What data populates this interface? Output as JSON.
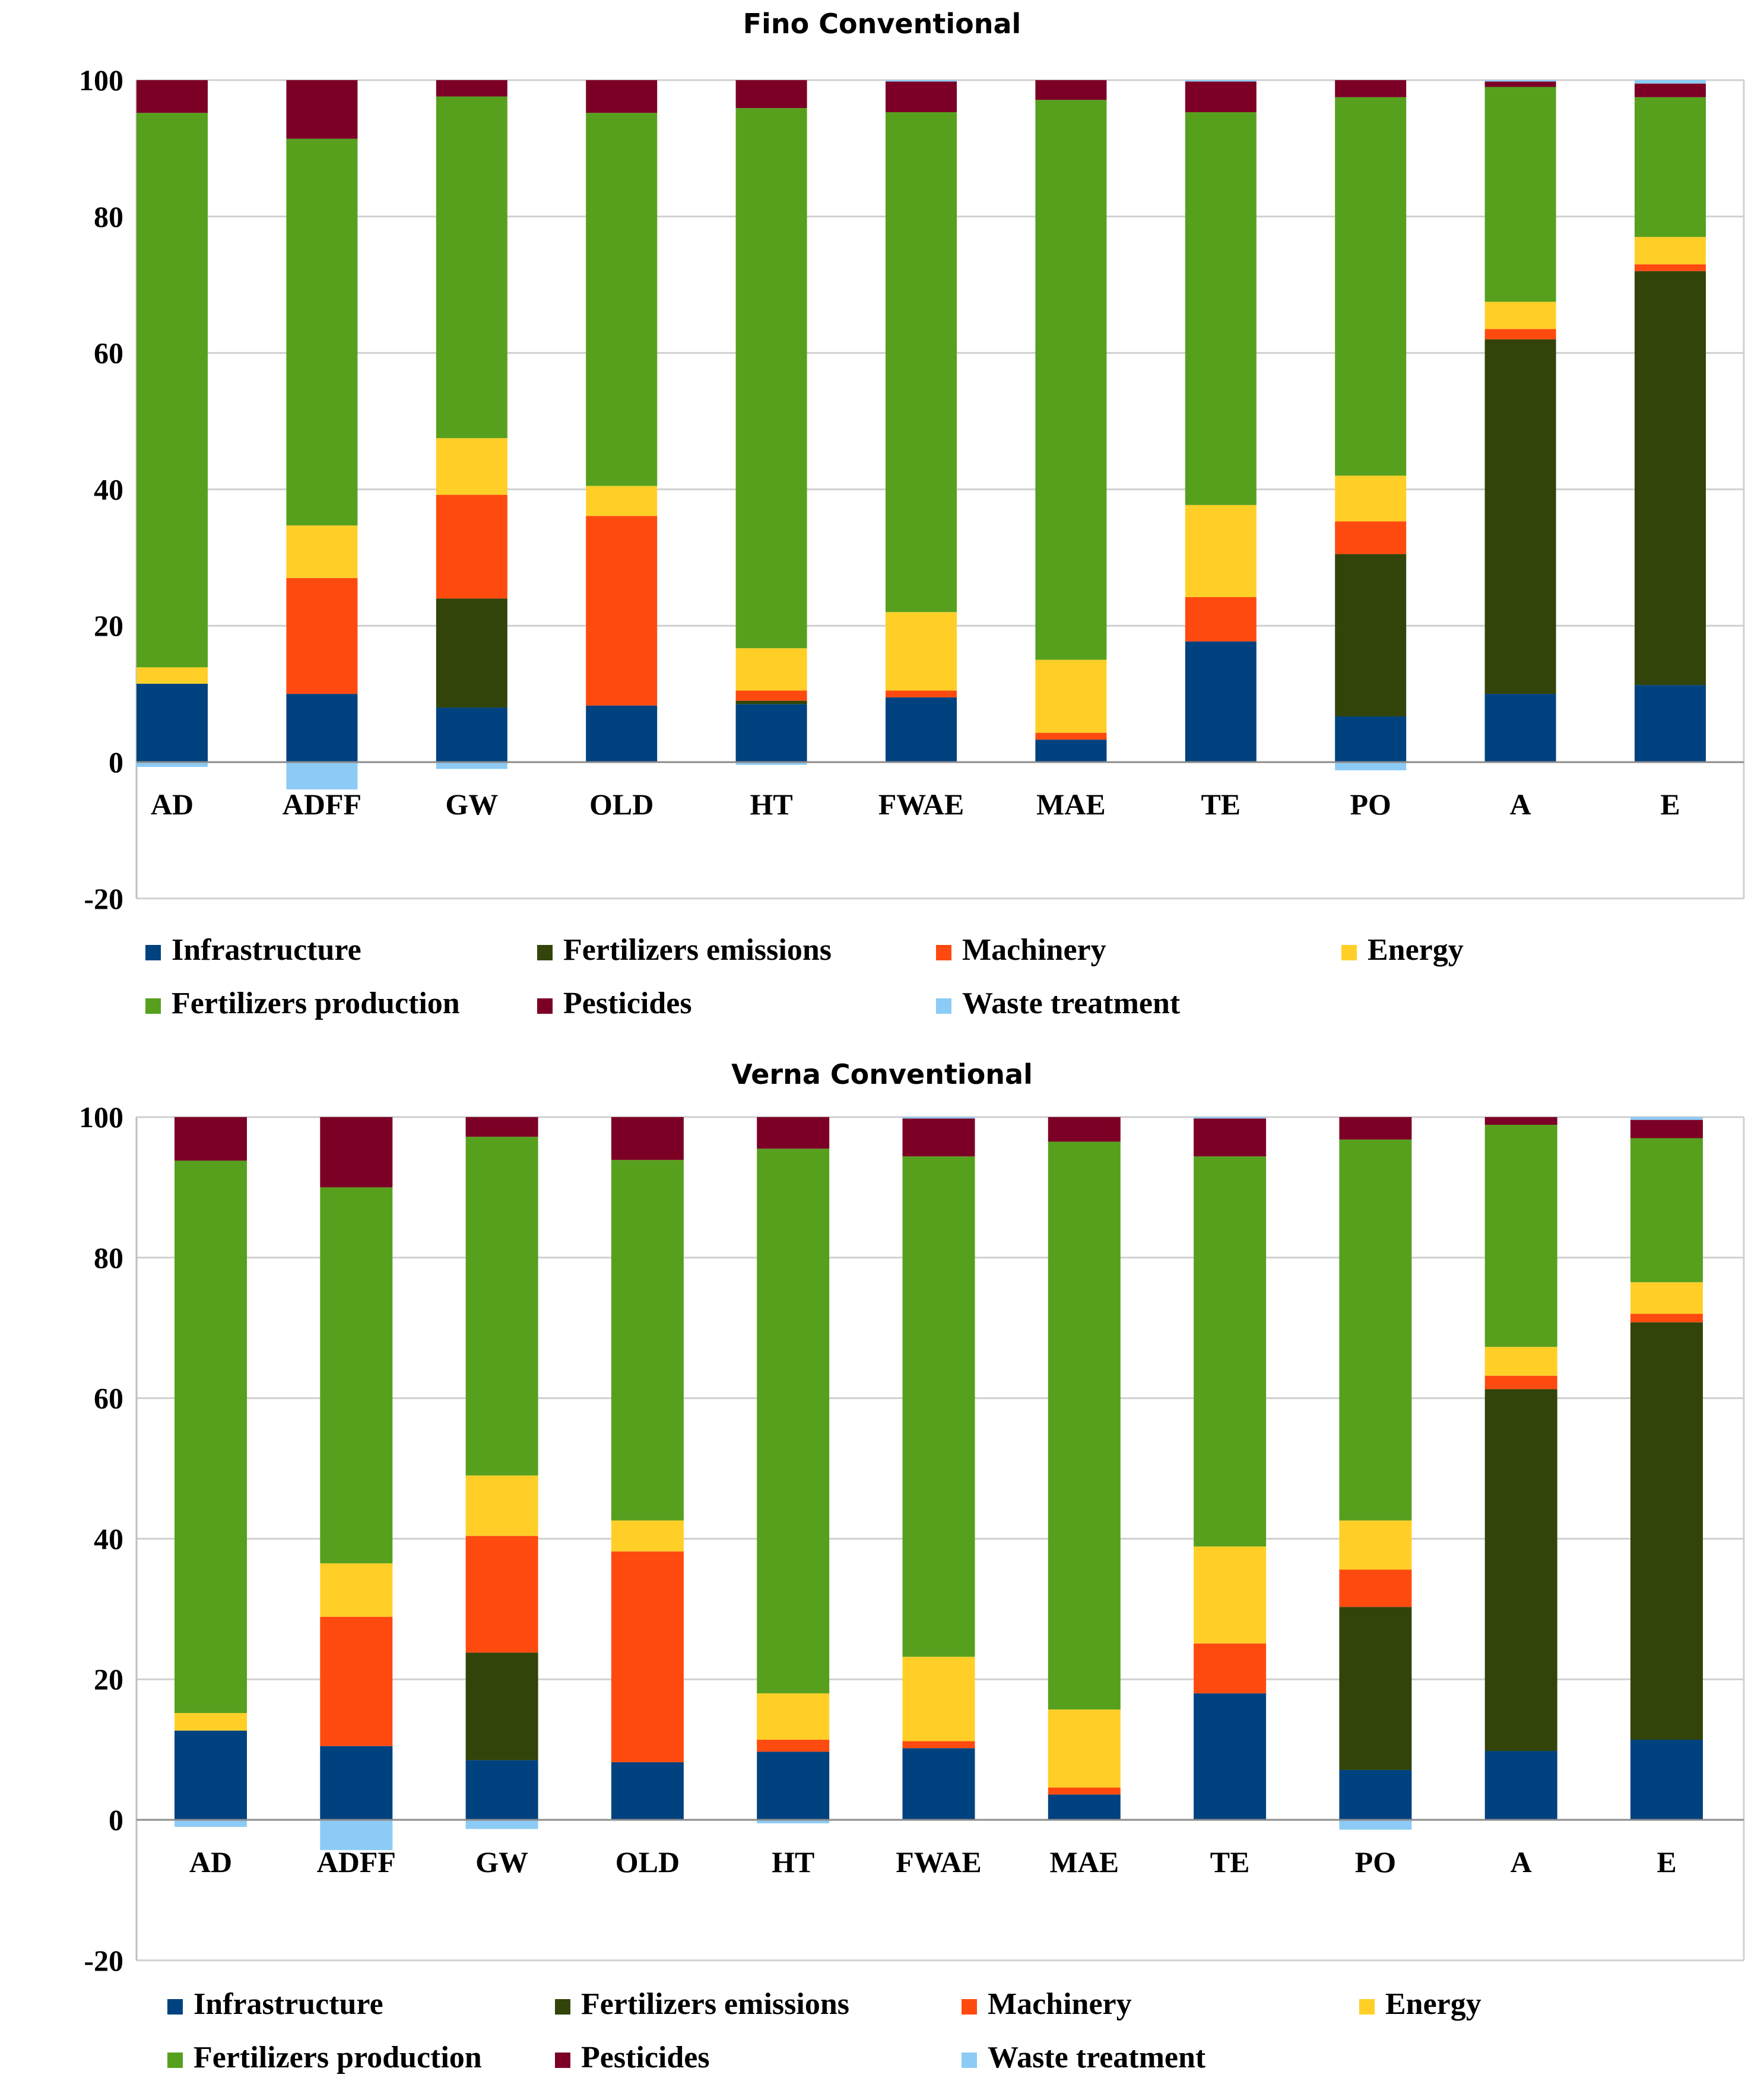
{
  "chart_data": [
    {
      "type": "bar",
      "stacked": true,
      "title": "Fino Conventional",
      "categories": [
        "AD",
        "ADFF",
        "GW",
        "OLD",
        "HT",
        "FWAE",
        "MAE",
        "TE",
        "PO",
        "A",
        "E"
      ],
      "ylim": [
        -20,
        100
      ],
      "yticks": [
        "100",
        "80",
        "60",
        "40",
        "20",
        "0",
        "-20"
      ],
      "grid": true,
      "series": [
        {
          "name": "Infrastructure",
          "color": "#00427f",
          "values": [
            11.5,
            10,
            8,
            8.3,
            8.5,
            9.5,
            3.3,
            17.7,
            6.7,
            10,
            11.3
          ]
        },
        {
          "name": "Fertilizers emissions",
          "color": "#32440a",
          "values": [
            0,
            0,
            16,
            0,
            0.5,
            0,
            0,
            0,
            23.8,
            52,
            60.7
          ]
        },
        {
          "name": "Machinery",
          "color": "#ff4a0f",
          "values": [
            0,
            17,
            15.2,
            27.8,
            1.5,
            1,
            1,
            6.5,
            4.8,
            1.5,
            1
          ]
        },
        {
          "name": "Energy",
          "color": "#ffcf27",
          "values": [
            2.4,
            7.7,
            8.3,
            4.4,
            6.2,
            11.5,
            10.7,
            13.5,
            6.7,
            4,
            4
          ]
        },
        {
          "name": "Fertilizers production",
          "color": "#57a01e",
          "values": [
            81.3,
            56.7,
            50.1,
            54.7,
            79.2,
            73.3,
            82.1,
            57.6,
            55.5,
            31.5,
            20.5
          ]
        },
        {
          "name": "Pesticides",
          "color": "#7c0026",
          "values": [
            4.8,
            8.6,
            2.4,
            4.8,
            4.1,
            4.5,
            2.9,
            4.5,
            2.5,
            0.8,
            2
          ]
        },
        {
          "name": "Waste treatment",
          "color": "#8ccbf5",
          "values": [
            -0.7,
            -4,
            -1,
            0,
            -0.4,
            0.2,
            0,
            0.2,
            -1.2,
            0.2,
            0.5
          ]
        }
      ]
    },
    {
      "type": "bar",
      "stacked": true,
      "title": "Verna Conventional",
      "categories": [
        "AD",
        "ADFF",
        "GW",
        "OLD",
        "HT",
        "FWAE",
        "MAE",
        "TE",
        "PO",
        "A",
        "E"
      ],
      "ylim": [
        -20,
        100
      ],
      "yticks": [
        "100",
        "80",
        "60",
        "40",
        "20",
        "0",
        "-20"
      ],
      "grid": true,
      "series": [
        {
          "name": "Infrastructure",
          "color": "#00427f",
          "values": [
            12.7,
            10.5,
            8.5,
            8.2,
            9.7,
            10.2,
            3.6,
            18,
            7.1,
            9.8,
            11.4
          ]
        },
        {
          "name": "Fertilizers emissions",
          "color": "#32440a",
          "values": [
            0,
            0,
            15.3,
            0,
            0,
            0,
            0,
            0,
            23.2,
            51.5,
            59.4
          ]
        },
        {
          "name": "Machinery",
          "color": "#ff4a0f",
          "values": [
            0,
            18.4,
            16.6,
            30,
            1.7,
            1,
            1,
            7.1,
            5.3,
            1.9,
            1.2
          ]
        },
        {
          "name": "Energy",
          "color": "#ffcf27",
          "values": [
            2.5,
            7.6,
            8.6,
            4.4,
            6.6,
            12,
            11.1,
            13.8,
            7,
            4.1,
            4.5
          ]
        },
        {
          "name": "Fertilizers production",
          "color": "#57a01e",
          "values": [
            78.6,
            53.5,
            48.2,
            51.3,
            77.5,
            71.2,
            80.8,
            55.5,
            54.2,
            31.6,
            20.5
          ]
        },
        {
          "name": "Pesticides",
          "color": "#7c0026",
          "values": [
            6.2,
            10,
            2.8,
            6.1,
            4.5,
            5.4,
            3.5,
            5.4,
            3.2,
            1.1,
            2.6
          ]
        },
        {
          "name": "Waste treatment",
          "color": "#8ccbf5",
          "values": [
            -1,
            -4.3,
            -1.3,
            0,
            -0.5,
            0.2,
            0,
            0.2,
            -1.4,
            0,
            0.4
          ]
        }
      ]
    }
  ],
  "legend": {
    "row1": [
      "Infrastructure",
      "Fertilizers emissions",
      "Machinery",
      "Energy"
    ],
    "row2": [
      "Fertilizers production",
      "Pesticides",
      "Waste treatment"
    ]
  }
}
